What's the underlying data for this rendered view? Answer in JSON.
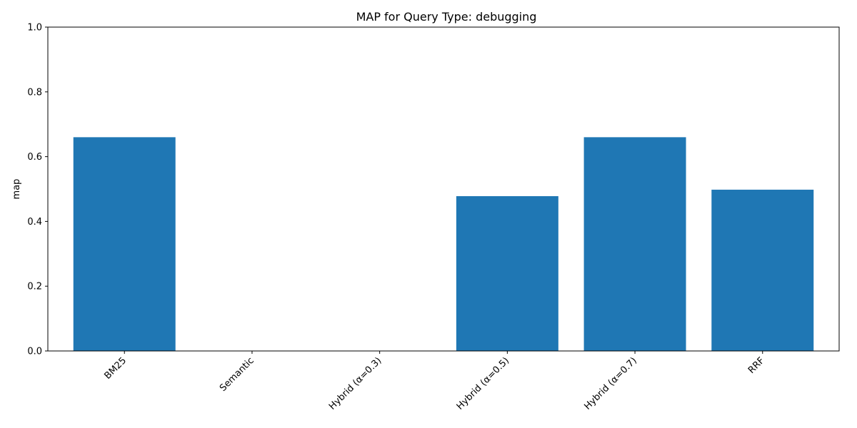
{
  "chart_data": {
    "type": "bar",
    "title": "MAP for Query Type: debugging",
    "xlabel": "",
    "ylabel": "map",
    "categories": [
      "BM25",
      "Semantic",
      "Hybrid (α=0.3)",
      "Hybrid (α=0.5)",
      "Hybrid (α=0.7)",
      "RRF"
    ],
    "values": [
      0.66,
      0.0,
      0.0,
      0.478,
      0.66,
      0.498
    ],
    "ylim": [
      0,
      1.0
    ],
    "yticks": [
      "0.0",
      "0.2",
      "0.4",
      "0.6",
      "0.8",
      "1.0"
    ],
    "bar_color": "#1f77b4",
    "grid": false,
    "legend": "none"
  }
}
